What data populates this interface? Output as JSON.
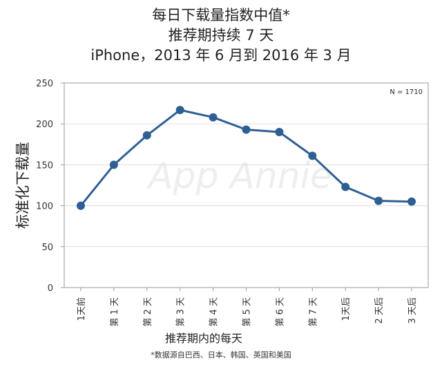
{
  "title_lines": [
    "每日下载量指数中值*",
    "推荐期持续 7 天",
    "iPhone，2013 年 6 月到 2016 年 3 月"
  ],
  "footnote": "*数据源自巴西、日本、韩国、英国和美国",
  "watermark": "App Annie",
  "colors": {
    "line": "#2e5f94",
    "axis": "#999999",
    "grid": "#dddddd"
  },
  "chart_data": {
    "type": "line",
    "title": "每日下载量指数中值* 推荐期持续 7 天 iPhone，2013 年 6 月到 2016 年 3 月",
    "xlabel": "推荐期内的每天",
    "ylabel": "标准化下载量",
    "categories": [
      "1天前",
      "第 1 天",
      "第 2 天",
      "第 3 天",
      "第 4 天",
      "第 5 天",
      "第 6 天",
      "第 7 天",
      "1天后",
      "2 天后",
      "3 天后"
    ],
    "series": [
      {
        "values": [
          100,
          150,
          186,
          217,
          208,
          193,
          190,
          161,
          123,
          106,
          105
        ]
      }
    ],
    "ylim": [
      0,
      250
    ],
    "yticks": [
      0,
      50,
      100,
      150,
      200,
      250
    ],
    "annotation": "N = 1710",
    "grid": true,
    "legend": "none"
  }
}
